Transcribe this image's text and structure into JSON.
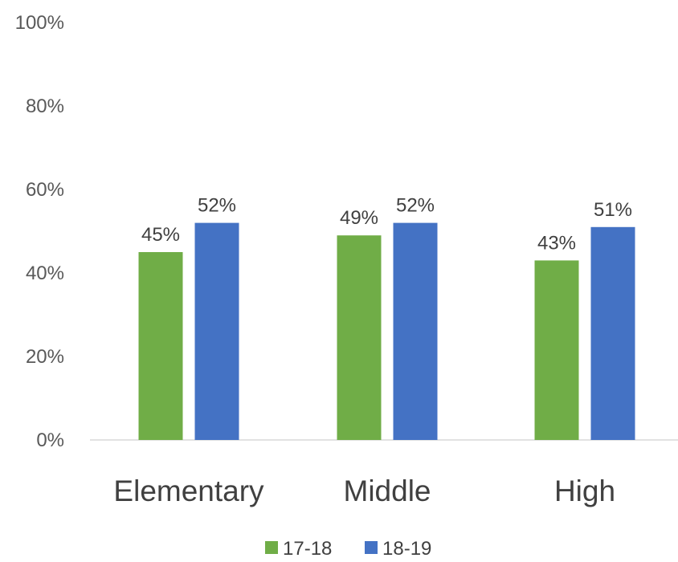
{
  "chart_data": {
    "type": "bar",
    "categories": [
      "Elementary",
      "Middle",
      "High"
    ],
    "series": [
      {
        "name": "17-18",
        "color": "#70AD47",
        "values": [
          45,
          49,
          43
        ]
      },
      {
        "name": "18-19",
        "color": "#4472C4",
        "values": [
          52,
          52,
          51
        ]
      }
    ],
    "data_labels": [
      [
        "45%",
        "49%",
        "43%"
      ],
      [
        "52%",
        "52%",
        "51%"
      ]
    ],
    "ylim": [
      0,
      100
    ],
    "yticks": [
      0,
      20,
      40,
      60,
      80,
      100
    ],
    "ytick_labels": [
      "0%",
      "20%",
      "40%",
      "60%",
      "80%",
      "100%"
    ],
    "grid": false,
    "legend_position": "bottom"
  }
}
